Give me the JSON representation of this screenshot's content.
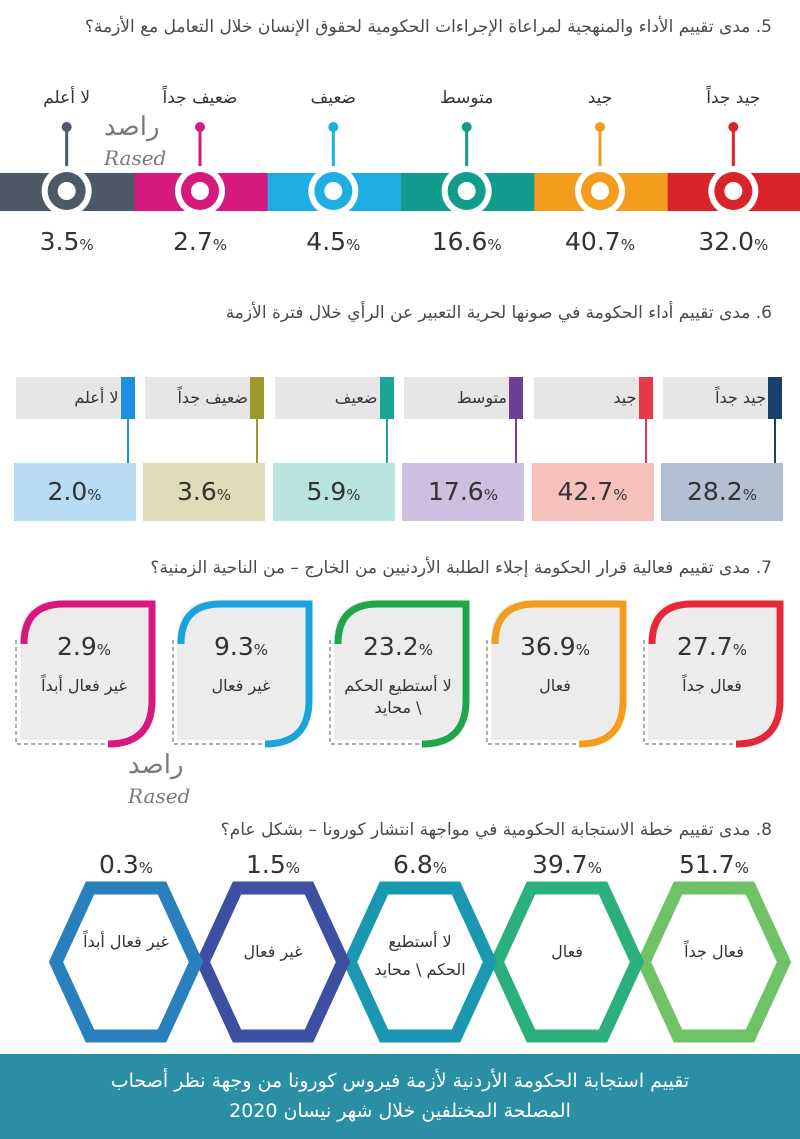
{
  "q5": {
    "title": "5. مدى تقييم الأداء والمنهجية لمراعاة الإجراءات الحكومية لحقوق الإنسان خلال التعامل مع الأزمة؟",
    "items": [
      {
        "label": "جيد جداً",
        "value": "32.0",
        "color": "#d8232a"
      },
      {
        "label": "جيد",
        "value": "40.7",
        "color": "#f39c1d"
      },
      {
        "label": "متوسط",
        "value": "16.6",
        "color": "#119c8e"
      },
      {
        "label": "ضعيف",
        "value": "4.5",
        "color": "#1daee3"
      },
      {
        "label": "ضعيف جداً",
        "value": "2.7",
        "color": "#d5197d"
      },
      {
        "label": "لا أعلم",
        "value": "3.5",
        "color": "#4e5966"
      }
    ]
  },
  "q6": {
    "title": "6. مدى تقييم أداء الحكومة في صونها لحرية التعبير عن الرأي خلال فترة الأزمة",
    "items": [
      {
        "label": "جيد جداً",
        "value": "28.2",
        "tag": "#1a3f6a",
        "bg": "#b3bfd3"
      },
      {
        "label": "جيد",
        "value": "42.7",
        "tag": "#e8394c",
        "bg": "#f7c1bb"
      },
      {
        "label": "متوسط",
        "value": "17.6",
        "tag": "#6b3f98",
        "bg": "#cdbfe0"
      },
      {
        "label": "ضعيف",
        "value": "5.9",
        "tag": "#1ea59a",
        "bg": "#b9e3dd"
      },
      {
        "label": "ضعيف جداً",
        "value": "3.6",
        "tag": "#9c9a2e",
        "bg": "#dfdcb9"
      },
      {
        "label": "لا أعلم",
        "value": "2.0",
        "tag": "#1c8fe0",
        "bg": "#b8dcf3"
      }
    ]
  },
  "q7": {
    "title": "7. مدى تقييم فعالية قرار الحكومة إجلاء الطلبة الأردنيين من الخارج – من الناحية الزمنية؟",
    "items": [
      {
        "label": "فعال جداً",
        "value": "27.7",
        "color": "#e5273a"
      },
      {
        "label": "فعال",
        "value": "36.9",
        "color": "#f39c1d"
      },
      {
        "label": "لا أستطيع الحكم \\ محايد",
        "value": "23.2",
        "color": "#1fa64a"
      },
      {
        "label": "غير فعال",
        "value": "9.3",
        "color": "#1aa3dc"
      },
      {
        "label": "غير فعال أبداً",
        "value": "2.9",
        "color": "#d8177f"
      }
    ]
  },
  "q8": {
    "title": "8. مدى تقييم خطة الاستجابة الحكومية في مواجهة انتشار كورونا – بشكل عام؟",
    "items": [
      {
        "label": "فعال جداً",
        "value": "51.7",
        "color": "#6fc266"
      },
      {
        "label": "فعال",
        "value": "39.7",
        "color": "#2bb07d"
      },
      {
        "label": "لا أستطيع الحكم \\ محايد",
        "value": "6.8",
        "color": "#1b98b1"
      },
      {
        "label": "غير فعال",
        "value": "1.5",
        "color": "#3e4fa2"
      },
      {
        "label": "غير فعال أبداً",
        "value": "0.3",
        "color": "#2a7fbd"
      }
    ]
  },
  "watermark": {
    "arabic": "راصد",
    "english": "Rased"
  },
  "footer": {
    "line1": "تقييم استجابة الحكومة الأردنية لأزمة فيروس كورونا من وجهة نظر أصحاب",
    "line2": "المصلحة المختلفين خلال شهر نيسان 2020"
  },
  "percent_sign": "%",
  "chart_data": [
    {
      "type": "bar",
      "title": "5. مدى تقييم الأداء والمنهجية لمراعاة الإجراءات الحكومية لحقوق الإنسان خلال التعامل مع الأزمة؟",
      "categories": [
        "جيد جداً",
        "جيد",
        "متوسط",
        "ضعيف",
        "ضعيف جداً",
        "لا أعلم"
      ],
      "values": [
        32.0,
        40.7,
        16.6,
        4.5,
        2.7,
        3.5
      ],
      "unit": "%"
    },
    {
      "type": "bar",
      "title": "6. مدى تقييم أداء الحكومة في صونها لحرية التعبير عن الرأي خلال فترة الأزمة",
      "categories": [
        "جيد جداً",
        "جيد",
        "متوسط",
        "ضعيف",
        "ضعيف جداً",
        "لا أعلم"
      ],
      "values": [
        28.2,
        42.7,
        17.6,
        5.9,
        3.6,
        2.0
      ],
      "unit": "%"
    },
    {
      "type": "bar",
      "title": "7. مدى تقييم فعالية قرار الحكومة إجلاء الطلبة الأردنيين من الخارج – من الناحية الزمنية؟",
      "categories": [
        "فعال جداً",
        "فعال",
        "لا أستطيع الحكم \\ محايد",
        "غير فعال",
        "غير فعال أبداً"
      ],
      "values": [
        27.7,
        36.9,
        23.2,
        9.3,
        2.9
      ],
      "unit": "%"
    },
    {
      "type": "bar",
      "title": "8. مدى تقييم خطة الاستجابة الحكومية في مواجهة انتشار كورونا – بشكل عام؟",
      "categories": [
        "فعال جداً",
        "فعال",
        "لا أستطيع الحكم \\ محايد",
        "غير فعال",
        "غير فعال أبداً"
      ],
      "values": [
        51.7,
        39.7,
        6.8,
        1.5,
        0.3
      ],
      "unit": "%"
    }
  ]
}
